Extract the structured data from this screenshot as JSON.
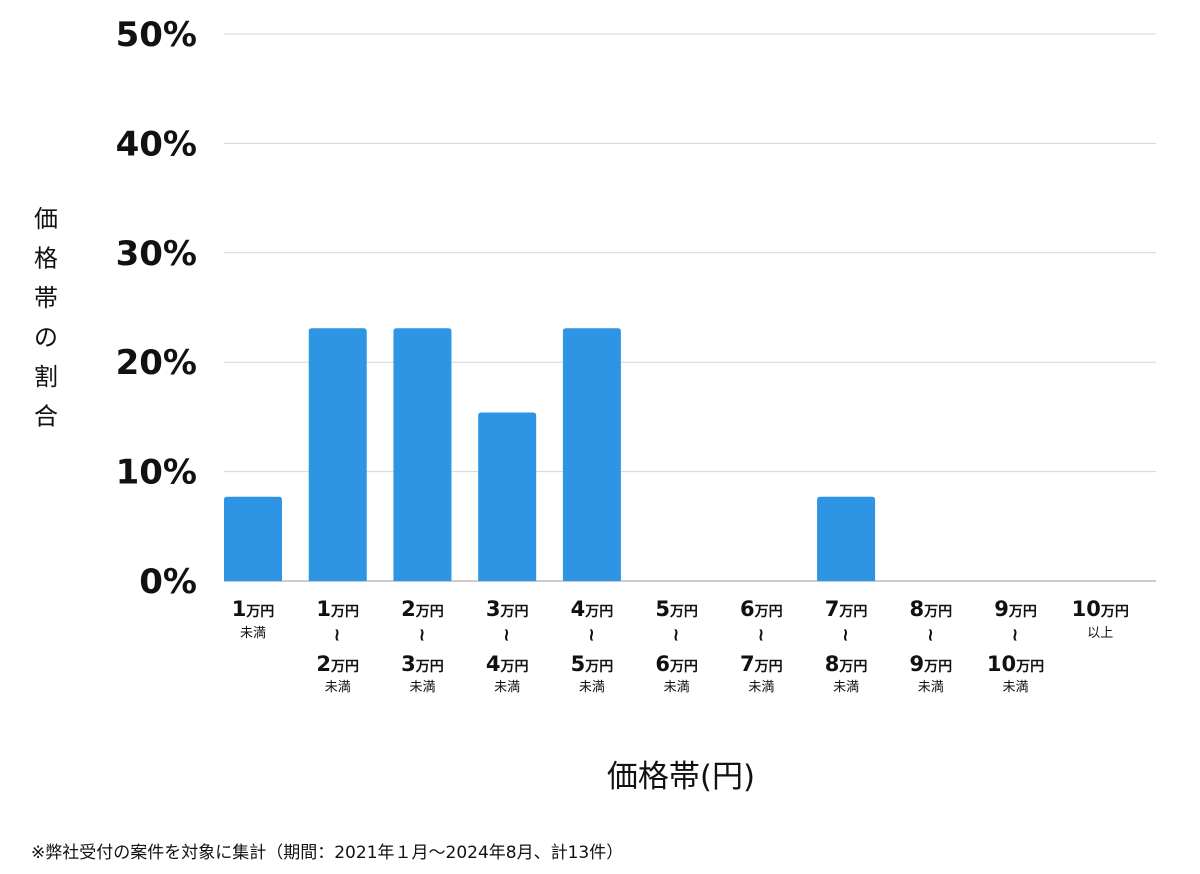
{
  "chart_data": {
    "type": "bar",
    "xlabel": "価格帯(円)",
    "ylabel": "価格帯の割合",
    "ylim": [
      0,
      50
    ],
    "yticks": [
      "0%",
      "10%",
      "20%",
      "30%",
      "40%",
      "50%"
    ],
    "grid": true,
    "bar_color": "#2d95e4",
    "categories": [
      {
        "lines": [
          {
            "num": "1",
            "unit": "万円"
          }
        ],
        "note": "未満"
      },
      {
        "lines": [
          {
            "num": "1",
            "unit": "万円"
          },
          {
            "num": "2",
            "unit": "万円"
          }
        ],
        "note": "未満"
      },
      {
        "lines": [
          {
            "num": "2",
            "unit": "万円"
          },
          {
            "num": "3",
            "unit": "万円"
          }
        ],
        "note": "未満"
      },
      {
        "lines": [
          {
            "num": "3",
            "unit": "万円"
          },
          {
            "num": "4",
            "unit": "万円"
          }
        ],
        "note": "未満"
      },
      {
        "lines": [
          {
            "num": "4",
            "unit": "万円"
          },
          {
            "num": "5",
            "unit": "万円"
          }
        ],
        "note": "未満"
      },
      {
        "lines": [
          {
            "num": "5",
            "unit": "万円"
          },
          {
            "num": "6",
            "unit": "万円"
          }
        ],
        "note": "未満"
      },
      {
        "lines": [
          {
            "num": "6",
            "unit": "万円"
          },
          {
            "num": "7",
            "unit": "万円"
          }
        ],
        "note": "未満"
      },
      {
        "lines": [
          {
            "num": "7",
            "unit": "万円"
          },
          {
            "num": "8",
            "unit": "万円"
          }
        ],
        "note": "未満"
      },
      {
        "lines": [
          {
            "num": "8",
            "unit": "万円"
          },
          {
            "num": "9",
            "unit": "万円"
          }
        ],
        "note": "未満"
      },
      {
        "lines": [
          {
            "num": "9",
            "unit": "万円"
          },
          {
            "num": "10",
            "unit": "万円"
          }
        ],
        "note": "未満"
      },
      {
        "lines": [
          {
            "num": "10",
            "unit": "万円"
          }
        ],
        "note": "以上"
      }
    ],
    "values": [
      7.7,
      23.1,
      23.1,
      15.4,
      23.1,
      0,
      0,
      7.7,
      0,
      0,
      0
    ],
    "range_separator": "~"
  },
  "footnote": "※弊社受付の案件を対象に集計（期間：2021年１月〜2024年8月、計13件）"
}
